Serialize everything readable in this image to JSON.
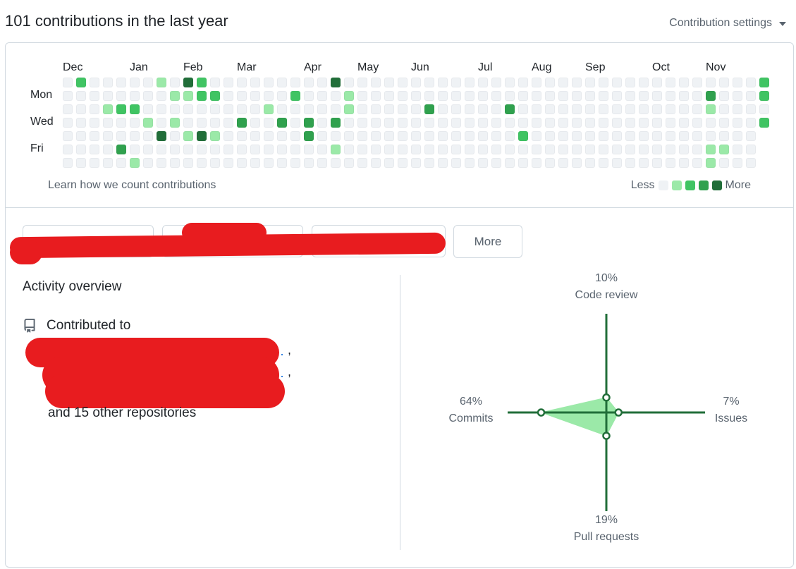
{
  "header": {
    "title": "101 contributions in the last year",
    "settings_label": "Contribution settings"
  },
  "calendar": {
    "months": [
      {
        "label": "Dec",
        "col": 0
      },
      {
        "label": "Jan",
        "col": 5
      },
      {
        "label": "Feb",
        "col": 9
      },
      {
        "label": "Mar",
        "col": 13
      },
      {
        "label": "Apr",
        "col": 18
      },
      {
        "label": "May",
        "col": 22
      },
      {
        "label": "Jun",
        "col": 26
      },
      {
        "label": "Jul",
        "col": 31
      },
      {
        "label": "Aug",
        "col": 35
      },
      {
        "label": "Sep",
        "col": 39
      },
      {
        "label": "Oct",
        "col": 44
      },
      {
        "label": "Nov",
        "col": 48
      }
    ],
    "day_labels": [
      {
        "label": "Mon",
        "row": 1
      },
      {
        "label": "Wed",
        "row": 3
      },
      {
        "label": "Fri",
        "row": 5
      }
    ],
    "weeks": 53,
    "last_week_days": 4,
    "activity": [
      [
        1,
        0,
        2
      ],
      [
        3,
        2,
        1
      ],
      [
        4,
        2,
        2
      ],
      [
        4,
        5,
        3
      ],
      [
        5,
        2,
        2
      ],
      [
        5,
        6,
        1
      ],
      [
        6,
        3,
        1
      ],
      [
        7,
        0,
        1
      ],
      [
        7,
        4,
        4
      ],
      [
        8,
        1,
        1
      ],
      [
        8,
        3,
        1
      ],
      [
        9,
        0,
        4
      ],
      [
        9,
        1,
        1
      ],
      [
        9,
        4,
        1
      ],
      [
        10,
        0,
        2
      ],
      [
        10,
        1,
        2
      ],
      [
        10,
        4,
        4
      ],
      [
        11,
        1,
        2
      ],
      [
        11,
        4,
        1
      ],
      [
        13,
        3,
        3
      ],
      [
        15,
        2,
        1
      ],
      [
        16,
        3,
        3
      ],
      [
        17,
        1,
        2
      ],
      [
        18,
        3,
        3
      ],
      [
        18,
        4,
        3
      ],
      [
        20,
        0,
        4
      ],
      [
        20,
        3,
        3
      ],
      [
        20,
        5,
        1
      ],
      [
        21,
        1,
        1
      ],
      [
        21,
        2,
        1
      ],
      [
        27,
        2,
        3
      ],
      [
        33,
        2,
        3
      ],
      [
        34,
        4,
        2
      ],
      [
        48,
        1,
        3
      ],
      [
        48,
        2,
        1
      ],
      [
        48,
        5,
        1
      ],
      [
        48,
        6,
        1
      ],
      [
        49,
        5,
        1
      ],
      [
        52,
        0,
        2
      ],
      [
        52,
        1,
        2
      ],
      [
        52,
        3,
        2
      ]
    ],
    "learn_link": "Learn how we count contributions",
    "legend_less": "Less",
    "legend_more": "More"
  },
  "colors": {
    "level0": "#eff2f5",
    "level1": "#9be9a8",
    "level2": "#40c463",
    "level3": "#30a14e",
    "level4": "#216e39",
    "radar_line": "#216e39",
    "radar_fill": "#9be9a8"
  },
  "tabs": {
    "more_label": "More"
  },
  "activity_overview": {
    "title": "Activity overview",
    "icon": "repo-icon",
    "contributed_to": "Contributed to",
    "other_repos": "and 15 other repositories"
  },
  "radar": {
    "axes": [
      {
        "name": "Code review",
        "percent": "10%",
        "value": 10,
        "direction": "top"
      },
      {
        "name": "Issues",
        "percent": "7%",
        "value": 7,
        "direction": "right"
      },
      {
        "name": "Pull requests",
        "percent": "19%",
        "value": 19,
        "direction": "bottom"
      },
      {
        "name": "Commits",
        "percent": "64%",
        "value": 64,
        "direction": "left"
      }
    ]
  }
}
